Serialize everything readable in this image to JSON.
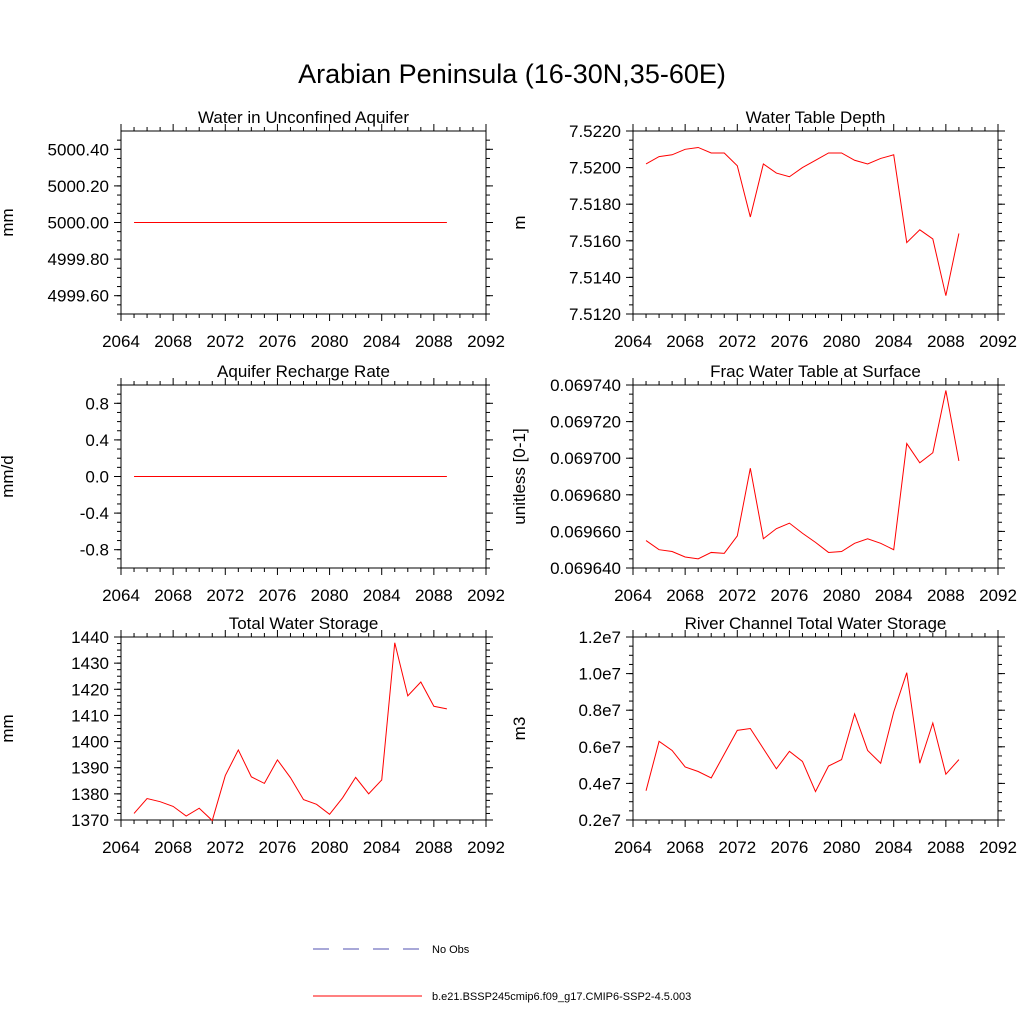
{
  "figure": {
    "title": "Arabian Peninsula (16-30N,35-60E)",
    "model_color": "#ff0000",
    "obs_color": "#5050b0"
  },
  "legend": {
    "obs_label": "No Obs",
    "model_label": "b.e21.BSSP245cmip6.f09_g17.CMIP6-SSP2-4.5.003"
  },
  "chart_data": [
    {
      "type": "line",
      "title": "Water in Unconfined Aquifer",
      "ylabel": "mm",
      "xlim": [
        2064,
        2092
      ],
      "xticks": [
        2064,
        2068,
        2072,
        2076,
        2080,
        2084,
        2088,
        2092
      ],
      "ylim": [
        4999.5,
        5000.5
      ],
      "yticks": [
        4999.6,
        4999.8,
        5000.0,
        5000.2,
        5000.4
      ],
      "ytick_labels": [
        "4999.60",
        "4999.80",
        "5000.00",
        "5000.20",
        "5000.40"
      ],
      "x": [
        2065,
        2066,
        2067,
        2068,
        2069,
        2070,
        2071,
        2072,
        2073,
        2074,
        2075,
        2076,
        2077,
        2078,
        2079,
        2080,
        2081,
        2082,
        2083,
        2084,
        2085,
        2086,
        2087,
        2088,
        2089
      ],
      "series": [
        {
          "values": [
            5000,
            5000,
            5000,
            5000,
            5000,
            5000,
            5000,
            5000,
            5000,
            5000,
            5000,
            5000,
            5000,
            5000,
            5000,
            5000,
            5000,
            5000,
            5000,
            5000,
            5000,
            5000,
            5000,
            5000,
            5000
          ]
        }
      ]
    },
    {
      "type": "line",
      "title": "Water Table Depth",
      "ylabel": "m",
      "xlim": [
        2064,
        2092
      ],
      "xticks": [
        2064,
        2068,
        2072,
        2076,
        2080,
        2084,
        2088,
        2092
      ],
      "ylim": [
        7.512,
        7.522
      ],
      "yticks": [
        7.512,
        7.514,
        7.516,
        7.518,
        7.52,
        7.522
      ],
      "ytick_labels": [
        "7.5120",
        "7.5140",
        "7.5160",
        "7.5180",
        "7.5200",
        "7.5220"
      ],
      "x": [
        2065,
        2066,
        2067,
        2068,
        2069,
        2070,
        2071,
        2072,
        2073,
        2074,
        2075,
        2076,
        2077,
        2078,
        2079,
        2080,
        2081,
        2082,
        2083,
        2084,
        2085,
        2086,
        2087,
        2088,
        2089
      ],
      "series": [
        {
          "values": [
            7.5202,
            7.5206,
            7.5207,
            7.521,
            7.5211,
            7.5208,
            7.5208,
            7.5201,
            7.5173,
            7.5202,
            7.5197,
            7.5195,
            7.52,
            7.5204,
            7.5208,
            7.5208,
            7.5204,
            7.5202,
            7.5205,
            7.5207,
            7.5159,
            7.5166,
            7.5161,
            7.513,
            7.5164
          ]
        }
      ]
    },
    {
      "type": "line",
      "title": "Aquifer Recharge Rate",
      "ylabel": "mm/d",
      "xlim": [
        2064,
        2092
      ],
      "xticks": [
        2064,
        2068,
        2072,
        2076,
        2080,
        2084,
        2088,
        2092
      ],
      "ylim": [
        -1.0,
        1.0
      ],
      "yticks": [
        -0.8,
        -0.4,
        0.0,
        0.4,
        0.8
      ],
      "ytick_labels": [
        "-0.8",
        "-0.4",
        "0.0",
        "0.4",
        "0.8"
      ],
      "x": [
        2065,
        2066,
        2067,
        2068,
        2069,
        2070,
        2071,
        2072,
        2073,
        2074,
        2075,
        2076,
        2077,
        2078,
        2079,
        2080,
        2081,
        2082,
        2083,
        2084,
        2085,
        2086,
        2087,
        2088,
        2089
      ],
      "series": [
        {
          "values": [
            0,
            0,
            0,
            0,
            0,
            0,
            0,
            0,
            0,
            0,
            0,
            0,
            0,
            0,
            0,
            0,
            0,
            0,
            0,
            0,
            0,
            0,
            0,
            0,
            0
          ]
        }
      ]
    },
    {
      "type": "line",
      "title": "Frac Water Table at Surface",
      "ylabel": "unitless [0-1]",
      "xlim": [
        2064,
        2092
      ],
      "xticks": [
        2064,
        2068,
        2072,
        2076,
        2080,
        2084,
        2088,
        2092
      ],
      "ylim": [
        0.06964,
        0.06974
      ],
      "yticks": [
        0.06964,
        0.06966,
        0.06968,
        0.0697,
        0.06972,
        0.06974
      ],
      "ytick_labels": [
        "0.069640",
        "0.069660",
        "0.069680",
        "0.069700",
        "0.069720",
        "0.069740"
      ],
      "x": [
        2065,
        2066,
        2067,
        2068,
        2069,
        2070,
        2071,
        2072,
        2073,
        2074,
        2075,
        2076,
        2077,
        2078,
        2079,
        2080,
        2081,
        2082,
        2083,
        2084,
        2085,
        2086,
        2087,
        2088,
        2089
      ],
      "series": [
        {
          "values": [
            0.069655,
            0.06965,
            0.069649,
            0.069646,
            0.069645,
            0.0696485,
            0.069648,
            0.0696575,
            0.0696945,
            0.069656,
            0.0696615,
            0.0696645,
            0.069659,
            0.069654,
            0.0696485,
            0.069649,
            0.0696535,
            0.069656,
            0.0696535,
            0.06965,
            0.069708,
            0.0696975,
            0.069703,
            0.069737,
            0.0696985
          ]
        }
      ]
    },
    {
      "type": "line",
      "title": "Total Water Storage",
      "ylabel": "mm",
      "xlim": [
        2064,
        2092
      ],
      "xticks": [
        2064,
        2068,
        2072,
        2076,
        2080,
        2084,
        2088,
        2092
      ],
      "ylim": [
        1370,
        1440
      ],
      "yticks": [
        1370,
        1380,
        1390,
        1400,
        1410,
        1420,
        1430,
        1440
      ],
      "ytick_labels": [
        "1370",
        "1380",
        "1390",
        "1400",
        "1410",
        "1420",
        "1430",
        "1440"
      ],
      "x": [
        2065,
        2066,
        2067,
        2068,
        2069,
        2070,
        2071,
        2072,
        2073,
        2074,
        2075,
        2076,
        2077,
        2078,
        2079,
        2080,
        2081,
        2082,
        2083,
        2084,
        2085,
        2086,
        2087,
        2088,
        2089
      ],
      "series": [
        {
          "values": [
            1372.5,
            1378.2,
            1377.0,
            1375.2,
            1371.5,
            1374.5,
            1369.8,
            1387.0,
            1396.8,
            1386.5,
            1384.0,
            1393.0,
            1386.2,
            1377.8,
            1376.0,
            1372.2,
            1378.5,
            1386.3,
            1380.0,
            1385.3,
            1437.8,
            1417.5,
            1422.8,
            1413.5,
            1412.5
          ]
        }
      ]
    },
    {
      "type": "line",
      "title": "River Channel Total Water Storage",
      "ylabel": "m3",
      "xlim": [
        2064,
        2092
      ],
      "xticks": [
        2064,
        2068,
        2072,
        2076,
        2080,
        2084,
        2088,
        2092
      ],
      "ylim": [
        2000000,
        12000000
      ],
      "yticks": [
        2000000,
        4000000,
        6000000,
        8000000,
        10000000,
        12000000
      ],
      "ytick_labels": [
        "0.2e7",
        "0.4e7",
        "0.6e7",
        "0.8e7",
        "1.0e7",
        "1.2e7"
      ],
      "x": [
        2065,
        2066,
        2067,
        2068,
        2069,
        2070,
        2071,
        2072,
        2073,
        2074,
        2075,
        2076,
        2077,
        2078,
        2079,
        2080,
        2081,
        2082,
        2083,
        2084,
        2085,
        2086,
        2087,
        2088,
        2089
      ],
      "series": [
        {
          "values": [
            3600000,
            6300000,
            5800000,
            4900000,
            4650000,
            4300000,
            5600000,
            6900000,
            7000000,
            5900000,
            4800000,
            5750000,
            5200000,
            3550000,
            4950000,
            5300000,
            7800000,
            5800000,
            5100000,
            7900000,
            10050000,
            5100000,
            7300000,
            4500000,
            5300000
          ]
        }
      ]
    }
  ]
}
